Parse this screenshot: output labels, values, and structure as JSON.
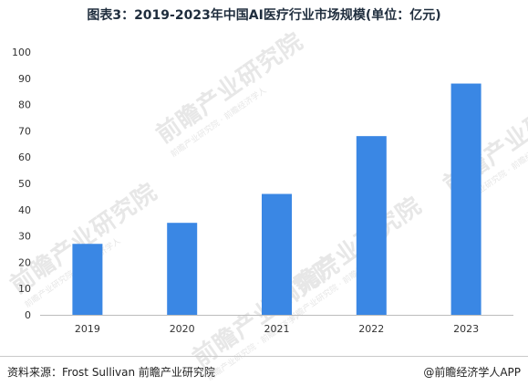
{
  "title": "图表3：2019-2023年中国AI医疗行业市场规模(单位：亿元)",
  "footer": {
    "source": "资料来源：Frost Sullivan 前瞻产业研究院",
    "brand": "@前瞻经济学人APP"
  },
  "watermark": {
    "text": "前瞻产业研究院",
    "subtext": "前瞻产业研究院 · 前瞻经济学人"
  },
  "colors": {
    "bar": "#3a87e4",
    "axis": "#bdbdbd",
    "tick": "#333333"
  },
  "chart_data": {
    "type": "bar",
    "title": "图表3：2019-2023年中国AI医疗行业市场规模(单位：亿元)",
    "categories": [
      "2019",
      "2020",
      "2021",
      "2022",
      "2023"
    ],
    "values": [
      27,
      35,
      46,
      68,
      88
    ],
    "ylim": [
      0,
      100
    ],
    "yticks": [
      0,
      10,
      20,
      30,
      40,
      50,
      60,
      70,
      80,
      90,
      100
    ],
    "xlabel": "",
    "ylabel": "",
    "grid": false,
    "legend": "none"
  }
}
